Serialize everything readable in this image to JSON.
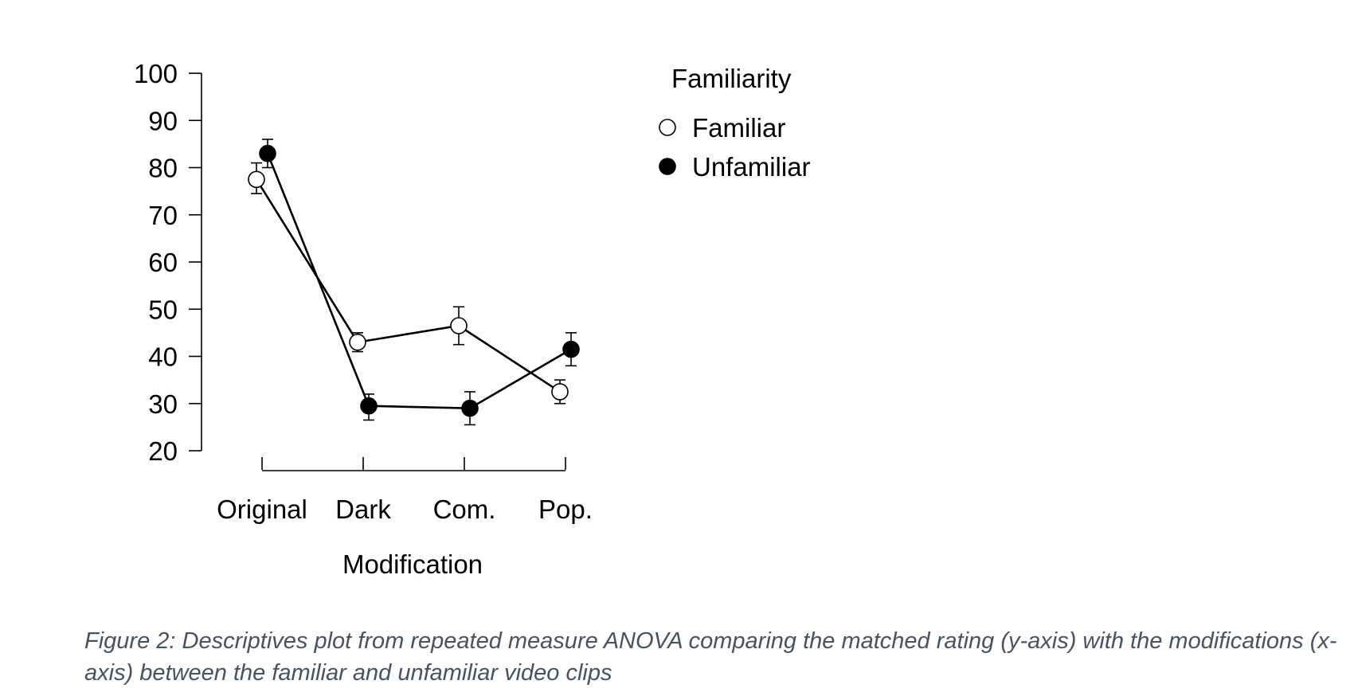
{
  "chart_data": {
    "type": "line",
    "xlabel": "Modification",
    "categories": [
      "Original",
      "Dark",
      "Com.",
      "Pop."
    ],
    "ylim": [
      20,
      100
    ],
    "yticks": [
      20,
      30,
      40,
      50,
      60,
      70,
      80,
      90,
      100
    ],
    "legend_title": "Familiarity",
    "legend_position": "top-right",
    "grid": false,
    "series": [
      {
        "name": "Familiar",
        "marker": "open-circle",
        "values": [
          77.5,
          43,
          46.5,
          32.5
        ],
        "error_low": [
          74.5,
          41,
          42.5,
          30
        ],
        "error_high": [
          81,
          45,
          50.5,
          35
        ]
      },
      {
        "name": "Unfamiliar",
        "marker": "filled-circle",
        "values": [
          83,
          29.5,
          29,
          41.5
        ],
        "error_low": [
          80,
          26.5,
          25.5,
          38
        ],
        "error_high": [
          86,
          32,
          32.5,
          45
        ]
      }
    ]
  },
  "caption": "Figure 2: Descriptives plot from repeated measure ANOVA comparing the matched rating (y-axis) with the modifications (x-axis) between the familiar and unfamiliar video clips"
}
